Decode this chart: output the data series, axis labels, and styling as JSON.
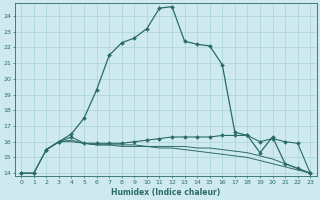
{
  "xlabel": "Humidex (Indice chaleur)",
  "background_color": "#ceeaef",
  "grid_color": "#aad4dc",
  "line_color": "#2a6b68",
  "xlim": [
    -0.5,
    23.5
  ],
  "ylim": [
    13.8,
    24.8
  ],
  "yticks": [
    14,
    15,
    16,
    17,
    18,
    19,
    20,
    21,
    22,
    23,
    24
  ],
  "xticks": [
    0,
    1,
    2,
    3,
    4,
    5,
    6,
    7,
    8,
    9,
    10,
    11,
    12,
    13,
    14,
    15,
    16,
    17,
    18,
    19,
    20,
    21,
    22,
    23
  ],
  "line1_x": [
    0,
    1,
    2,
    3,
    4,
    5,
    6,
    7,
    8,
    9,
    10,
    11,
    12,
    13,
    14,
    15,
    16,
    17,
    18,
    19,
    20,
    21,
    22,
    23
  ],
  "line1_y": [
    14.0,
    14.0,
    15.5,
    16.0,
    16.5,
    17.5,
    19.3,
    21.5,
    22.3,
    22.6,
    23.2,
    24.5,
    24.6,
    22.4,
    22.2,
    22.1,
    20.9,
    16.6,
    16.4,
    15.3,
    16.3,
    14.6,
    14.3,
    14.0
  ],
  "line2_x": [
    0,
    1,
    2,
    3,
    4,
    5,
    6,
    7,
    8,
    9,
    10,
    11,
    12,
    13,
    14,
    15,
    16,
    17,
    18,
    19,
    20,
    21,
    22,
    23
  ],
  "line2_y": [
    14.0,
    14.0,
    15.5,
    16.0,
    16.3,
    15.9,
    15.9,
    15.9,
    15.9,
    16.0,
    16.1,
    16.2,
    16.3,
    16.3,
    16.3,
    16.3,
    16.4,
    16.4,
    16.4,
    16.0,
    16.2,
    16.0,
    15.9,
    14.0
  ],
  "line3_x": [
    2,
    3,
    4,
    5,
    6,
    7,
    8,
    9,
    10,
    11,
    12,
    13,
    14,
    15,
    16,
    17,
    18,
    19,
    20,
    21,
    22,
    23
  ],
  "line3_y": [
    15.5,
    16.0,
    16.1,
    15.9,
    15.8,
    15.8,
    15.7,
    15.7,
    15.7,
    15.6,
    15.6,
    15.5,
    15.4,
    15.3,
    15.2,
    15.1,
    15.0,
    14.8,
    14.6,
    14.4,
    14.2,
    14.0
  ],
  "line4_x": [
    2,
    3,
    4,
    5,
    6,
    7,
    8,
    9,
    10,
    11,
    12,
    13,
    14,
    15,
    16,
    17,
    18,
    19,
    20,
    21,
    22,
    23
  ],
  "line4_y": [
    15.5,
    16.0,
    16.0,
    15.9,
    15.8,
    15.8,
    15.8,
    15.8,
    15.7,
    15.7,
    15.7,
    15.7,
    15.6,
    15.6,
    15.5,
    15.4,
    15.3,
    15.1,
    14.9,
    14.6,
    14.3,
    14.0
  ]
}
